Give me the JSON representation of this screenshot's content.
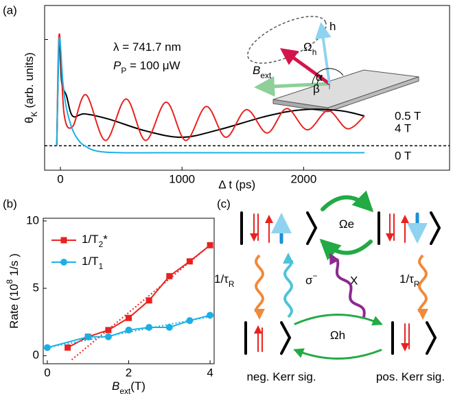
{
  "chart_data": [
    {
      "type": "line",
      "panel_label": "(a)",
      "xlabel": "Δ t (ps)",
      "ylabel": [
        {
          "text": "θ"
        },
        {
          "sub": "K"
        },
        {
          "text": " (arb. units)"
        }
      ],
      "xlim": [
        -130,
        3200
      ],
      "ylim": [
        -0.23,
        1.32
      ],
      "xticks": [
        0,
        1000,
        2000
      ],
      "baseline": 0,
      "annotations": [
        [
          {
            "text": "λ    = 741.7 nm"
          }
        ],
        [
          {
            "text": "P"
          },
          {
            "sub": "P"
          },
          {
            "text": " = 100    μW"
          }
        ],
        [
          {
            "text": "Ω"
          },
          {
            "sub": "h"
          }
        ],
        [
          {
            "text": "h"
          }
        ],
        [
          {
            "text": "B"
          },
          {
            "sub": "ext"
          }
        ],
        [
          {
            "text": "α"
          }
        ],
        [
          {
            "text": "β"
          }
        ]
      ],
      "series": [
        {
          "name": "0.5 T",
          "color": "#000000",
          "x": [
            -30,
            -10,
            10,
            50,
            100,
            200,
            400,
            700,
            1000,
            1300,
            1700,
            2000,
            2300,
            2500
          ],
          "values": [
            0,
            1.0,
            0.6,
            0.47,
            0.28,
            0.3,
            0.25,
            0.14,
            0.08,
            0.15,
            0.28,
            0.34,
            0.33,
            0.28
          ]
        },
        {
          "name": "4 T",
          "color": "#e8221f",
          "x": [
            -30,
            -10,
            30,
            100,
            210,
            370,
            540,
            700,
            870,
            1030,
            1200,
            1360,
            1530,
            1700,
            1860,
            2030,
            2200,
            2360,
            2500
          ],
          "values": [
            0,
            1.05,
            0.3,
            0.18,
            0.48,
            0.05,
            0.44,
            0.05,
            0.41,
            0.05,
            0.37,
            0.08,
            0.34,
            0.12,
            0.35,
            0.15,
            0.33,
            0.16,
            0.28
          ]
        },
        {
          "name": "0 T",
          "color": "#1ab0e6",
          "x": [
            -30,
            -10,
            20,
            50,
            100,
            150,
            200,
            300,
            500,
            1000,
            1500,
            2000,
            2500
          ],
          "values": [
            0,
            1.0,
            0.6,
            0.35,
            0.15,
            0.05,
            0.0,
            -0.05,
            -0.065,
            -0.065,
            -0.065,
            -0.065,
            -0.065
          ]
        }
      ]
    },
    {
      "type": "line",
      "panel_label": "(b)",
      "xlabel": [
        {
          "text": "B"
        },
        {
          "sub": "ext"
        },
        {
          "text": "(T)"
        }
      ],
      "ylabel": [
        {
          "text": "Rate (10"
        },
        {
          "sup": "8"
        },
        {
          "text": " 1/s )"
        }
      ],
      "xlim": [
        -0.1,
        4.1
      ],
      "ylim": [
        -0.6,
        10.2
      ],
      "xticks": [
        0,
        2,
        4
      ],
      "yticks": [
        0,
        5,
        10
      ],
      "legend": "upper left",
      "series": [
        {
          "name": [
            {
              "text": "1/T"
            },
            {
              "sub": "2"
            },
            {
              "text": "*"
            }
          ],
          "color": "#e8221f",
          "marker": "square",
          "x": [
            0.5,
            1,
            1.5,
            2,
            2.5,
            3,
            3.5,
            4
          ],
          "values": [
            0.6,
            1.4,
            1.9,
            2.8,
            4.1,
            5.9,
            7.0,
            8.2
          ]
        },
        {
          "name": [
            {
              "text": "1/T"
            },
            {
              "sub": "1"
            }
          ],
          "color": "#1ab0e6",
          "marker": "circle",
          "x": [
            0,
            1,
            1.5,
            2,
            2.5,
            3,
            3.5,
            4
          ],
          "values": [
            0.6,
            1.4,
            1.4,
            1.9,
            2.1,
            2.1,
            2.6,
            3.0
          ]
        },
        {
          "color": "#e8221f",
          "dash": true,
          "x": [
            0.6,
            4
          ],
          "values": [
            -0.3,
            8.2
          ]
        },
        {
          "color": "#1ab0e6",
          "dash": true,
          "x": [
            0,
            4
          ],
          "values": [
            0.6,
            2.9
          ]
        }
      ]
    }
  ],
  "diagram": {
    "panel_label": "(c)",
    "omega_e": [
      {
        "text": "Ω"
      },
      {
        "text": "e"
      }
    ],
    "omega_h": [
      {
        "text": "Ω"
      },
      {
        "text": "h"
      }
    ],
    "tau_left": [
      {
        "text": "1/τ"
      },
      {
        "sub": "R"
      }
    ],
    "tau_right": [
      {
        "text": "1/τ"
      },
      {
        "sub": "R"
      }
    ],
    "sigma": [
      {
        "text": "σ"
      },
      {
        "sup": "−"
      }
    ],
    "x_label": "X",
    "neg": "neg. Kerr sig.",
    "pos": "pos. Kerr sig."
  }
}
